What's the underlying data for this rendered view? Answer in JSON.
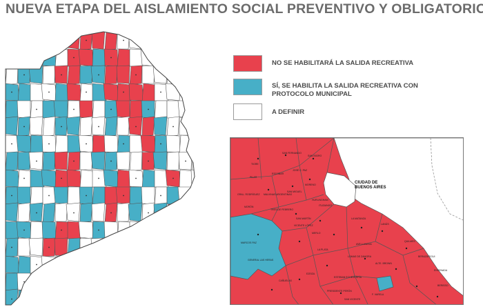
{
  "title": "NUEVA ETAPA DEL AISLAMIENTO SOCIAL PREVENTIVO Y OBLIGATORIO",
  "colors": {
    "red": "#e8414d",
    "blue": "#47afc7",
    "white": "#ffffff",
    "border": "#555555",
    "water": "#f5f3e6"
  },
  "legend": [
    {
      "label_lines": [
        "NO SE HABILITARÁ LA SALIDA RECREATIVA"
      ],
      "color": "#e8414d"
    },
    {
      "label_lines": [
        "SÍ, SE HABILITA LA SALIDA RECREATIVA CON",
        "PROTOCOLO MUNICIPAL"
      ],
      "color": "#47afc7"
    },
    {
      "label_lines": [
        "A DEFINIR"
      ],
      "color": "#ffffff"
    }
  ],
  "inset": {
    "city_label": "CIUDAD DE\nBUENOS AIRES",
    "labels": [
      "TIGRE",
      "SAN FERNANDO",
      "SAN ISIDRO",
      "PILAR",
      "ESCOBAR",
      "JOSÉ C. PAZ",
      "MALVINAS ARGENTINAS",
      "SAN MIGUEL",
      "MORENO",
      "HURLINGHAM",
      "ITUZAINGÓ",
      "MORÓN",
      "TRES DE FEBRERO",
      "SAN MARTÍN",
      "VICENTE LÓPEZ",
      "GRAL. RODRÍGUEZ",
      "MARCOS PAZ",
      "MERLO",
      "LA MATANZA",
      "AVELLANEDA",
      "LANÚS",
      "QUILMES",
      "BERAZATEGUI",
      "ENSENADA",
      "BERISSO",
      "LA PLATA",
      "LOMAS DE ZAMORA",
      "ALTE. BROWN",
      "ESTEBAN ECHEVERRÍA",
      "EZEIZA",
      "PRESIDENTE PERÓN",
      "SAN VICENTE",
      "CAÑUELAS",
      "F. VARELA",
      "GENERAL LAS HERAS"
    ]
  }
}
